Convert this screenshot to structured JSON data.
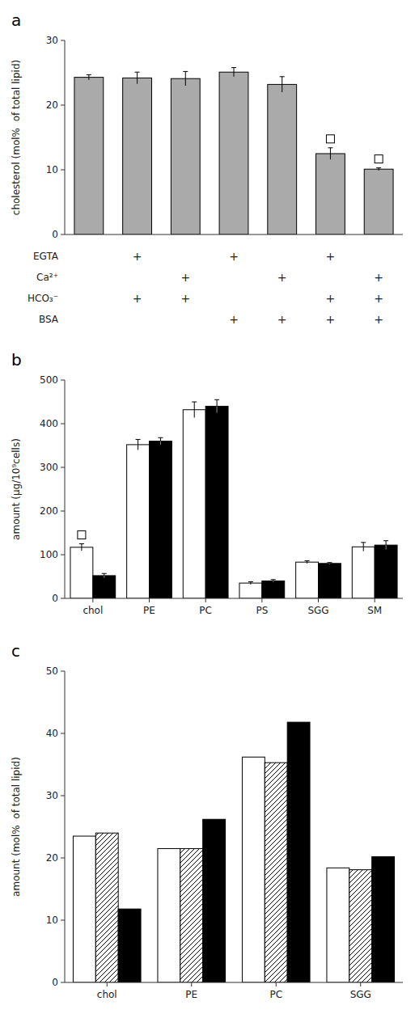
{
  "chart_data": [
    {
      "type": "bar",
      "title": "a",
      "ylabel": "cholesterol (mol%  of total lipid)",
      "categories": [
        null,
        null,
        null,
        null,
        null,
        null,
        null
      ],
      "values": [
        24.3,
        24.2,
        24.1,
        25.1,
        23.2,
        12.5,
        10.1
      ],
      "errors": [
        0.4,
        0.9,
        1.1,
        0.7,
        1.2,
        0.9,
        0.2
      ],
      "significant": [
        false,
        false,
        false,
        false,
        false,
        true,
        true
      ],
      "color": "#aaaaaa",
      "ylim": [
        0,
        30
      ],
      "yticks": [
        0,
        10,
        20,
        30
      ],
      "tick_labels": "y",
      "conditions": [
        {
          "name": "EGTA",
          "values": [
            null,
            "+",
            null,
            "+",
            null,
            "+",
            null
          ]
        },
        {
          "name": "Ca²⁺",
          "values": [
            null,
            null,
            "+",
            null,
            "+",
            null,
            "+"
          ]
        },
        {
          "name": "HCO₃⁻",
          "values": [
            null,
            "+",
            "+",
            null,
            null,
            "+",
            "+"
          ]
        },
        {
          "name": "BSA",
          "values": [
            null,
            null,
            null,
            "+",
            "+",
            "+",
            "+"
          ]
        }
      ]
    },
    {
      "type": "bar",
      "title": "b",
      "ylabel": "amount (μg/10⁹cells)",
      "categories": [
        "chol",
        "PE",
        "PC",
        "PS",
        "SGG",
        "SM"
      ],
      "series": [
        {
          "color": "white",
          "values": [
            117,
            352,
            432,
            35,
            83,
            118
          ],
          "errors": [
            8,
            12,
            18,
            3,
            3,
            10
          ],
          "significant": [
            true,
            false,
            false,
            false,
            false,
            false
          ]
        },
        {
          "color": "black",
          "values": [
            52,
            360,
            440,
            40,
            80,
            122
          ],
          "errors": [
            5,
            8,
            15,
            3,
            2,
            10
          ]
        }
      ],
      "ylim": [
        0,
        500
      ],
      "yticks": [
        0,
        100,
        200,
        300,
        400,
        500
      ]
    },
    {
      "type": "bar",
      "title": "c",
      "ylabel": "amount (mol%  of total lipid)",
      "categories": [
        "chol",
        "PE",
        "PC",
        "SGG"
      ],
      "series": [
        {
          "color": "white",
          "values": [
            23.5,
            21.5,
            36.2,
            18.4
          ]
        },
        {
          "color": "white",
          "values": [
            24.0,
            21.5,
            35.3,
            18.1
          ]
        },
        {
          "color": "black",
          "values": [
            11.8,
            26.2,
            41.8,
            20.2
          ]
        }
      ],
      "ylim": [
        0,
        50
      ],
      "yticks": [
        0,
        10,
        20,
        30,
        40,
        50
      ]
    }
  ]
}
